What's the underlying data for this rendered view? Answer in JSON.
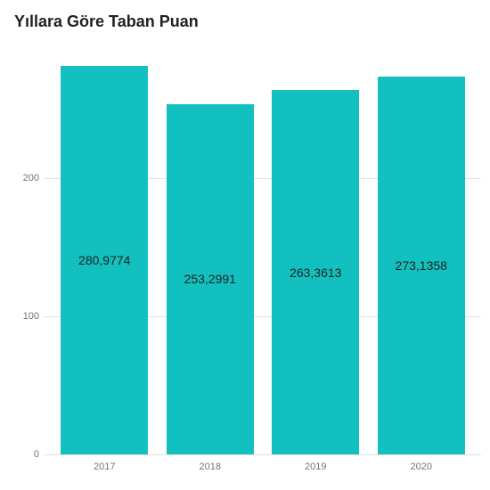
{
  "chart": {
    "type": "bar",
    "title": "Yıllara Göre Taban Puan",
    "title_fontsize": 18,
    "title_color": "#212121",
    "background_color": "#ffffff",
    "grid_color": "#e0e0e0",
    "axis_label_color": "#747474",
    "axis_label_fontsize": 11,
    "bar_label_fontsize": 14,
    "bar_label_color": "#212121",
    "bar_color": "#12c1bf",
    "ymin": 0,
    "ymax": 290,
    "yticks": [
      0,
      100,
      200
    ],
    "categories": [
      "2017",
      "2018",
      "2019",
      "2020"
    ],
    "values": [
      280.9774,
      253.2991,
      263.3613,
      273.1358
    ],
    "display_labels": [
      "280,9774",
      "253,2991",
      "263,3613",
      "273,1358"
    ],
    "bar_width_ratio": 0.9
  }
}
